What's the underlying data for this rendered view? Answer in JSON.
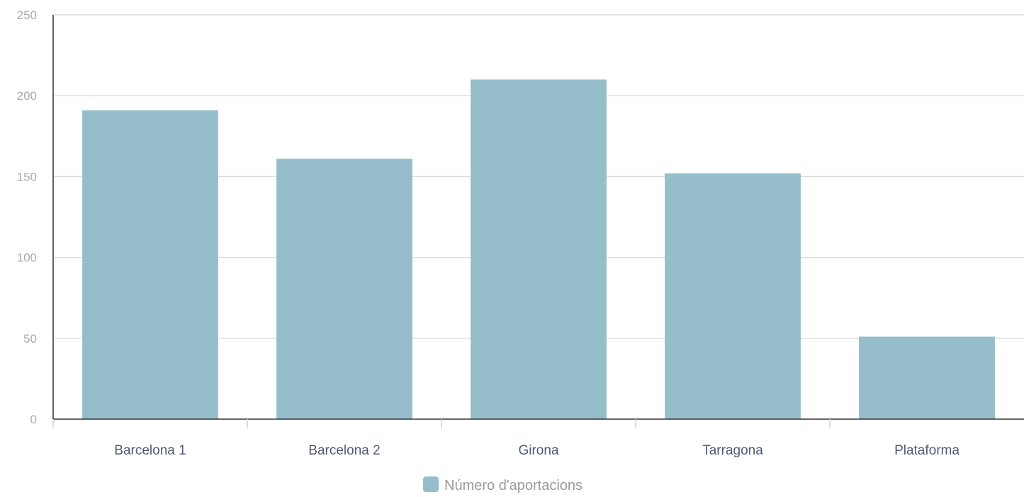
{
  "chart_data": {
    "type": "bar",
    "categories": [
      "Barcelona 1",
      "Barcelona 2",
      "Girona",
      "Tarragona",
      "Plataforma"
    ],
    "series": [
      {
        "name": "Número d'aportacions",
        "values": [
          191,
          161,
          210,
          152,
          51
        ]
      }
    ],
    "ylim": [
      0,
      250
    ],
    "yticks": [
      0,
      50,
      100,
      150,
      200,
      250
    ],
    "grid": true,
    "legend": "bottom-center",
    "title": "",
    "xlabel": "",
    "ylabel": "",
    "colors": {
      "bar": "#95bdca",
      "grid": "#dcdcdc",
      "axis": "#333333",
      "tick": "#cccccc"
    }
  }
}
